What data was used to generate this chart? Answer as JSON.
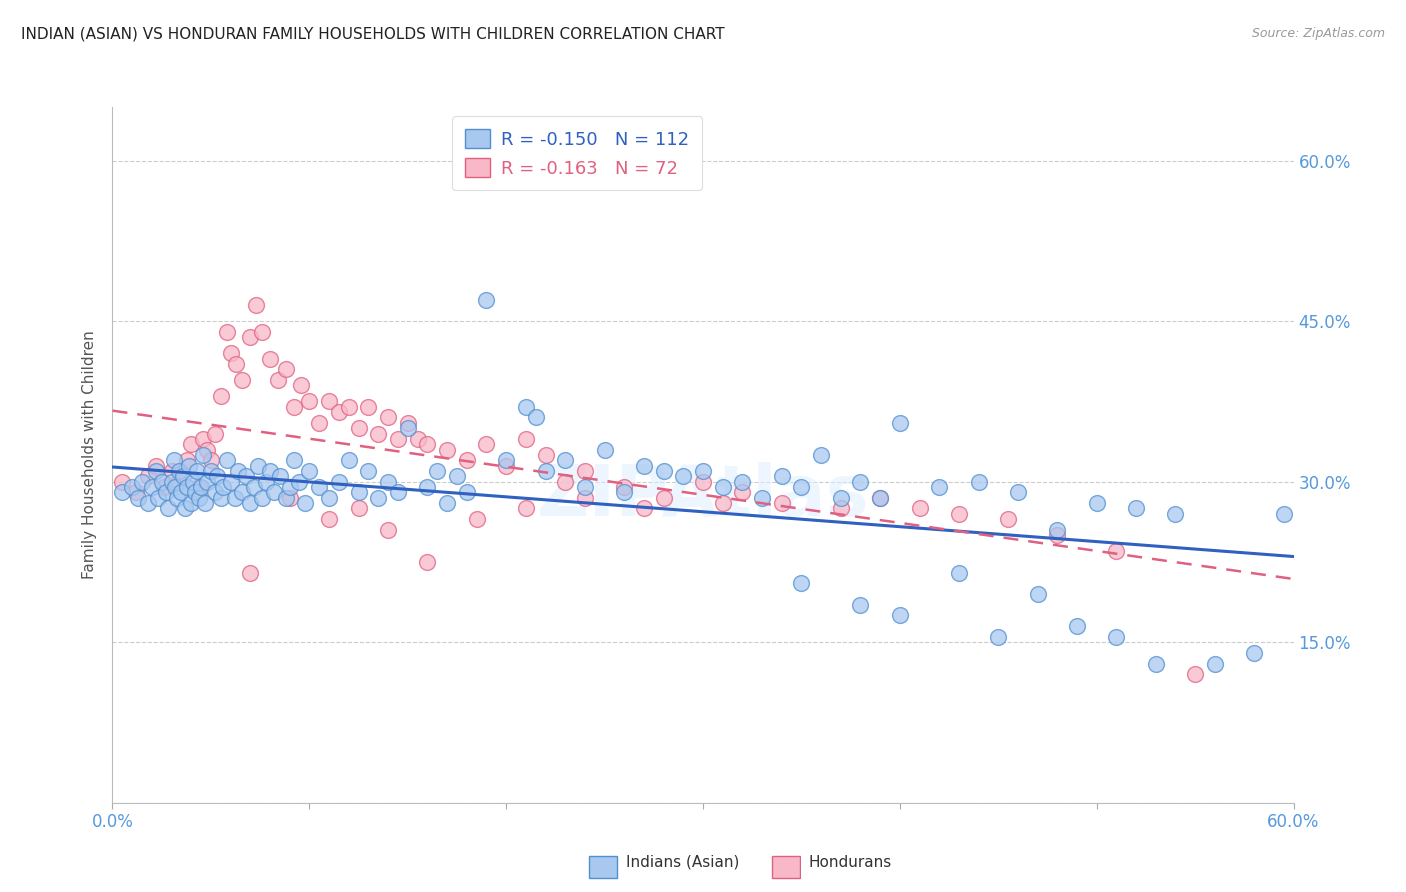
{
  "title": "INDIAN (ASIAN) VS HONDURAN FAMILY HOUSEHOLDS WITH CHILDREN CORRELATION CHART",
  "source": "Source: ZipAtlas.com",
  "ylabel": "Family Households with Children",
  "xlim": [
    0.0,
    0.6
  ],
  "ylim": [
    0.0,
    0.65
  ],
  "legend_r1": "-0.150",
  "legend_n1": "112",
  "legend_r2": "-0.163",
  "legend_n2": "72",
  "color_indian_fill": "#A8C8F0",
  "color_indian_edge": "#5090D0",
  "color_honduran_fill": "#F8B8C8",
  "color_honduran_edge": "#E06080",
  "color_line_indian": "#3060C0",
  "color_line_honduran": "#E06080",
  "color_title": "#222222",
  "color_source": "#999999",
  "color_tick_labels": "#5599DD",
  "color_ylabel": "#555555",
  "watermark": "ZIPAtlas",
  "indian_x": [
    0.005,
    0.01,
    0.013,
    0.015,
    0.018,
    0.02,
    0.022,
    0.023,
    0.025,
    0.027,
    0.028,
    0.03,
    0.031,
    0.032,
    0.033,
    0.034,
    0.035,
    0.036,
    0.037,
    0.038,
    0.039,
    0.04,
    0.041,
    0.042,
    0.043,
    0.044,
    0.045,
    0.046,
    0.047,
    0.048,
    0.05,
    0.052,
    0.053,
    0.055,
    0.056,
    0.058,
    0.06,
    0.062,
    0.064,
    0.066,
    0.068,
    0.07,
    0.072,
    0.074,
    0.076,
    0.078,
    0.08,
    0.082,
    0.085,
    0.088,
    0.09,
    0.092,
    0.095,
    0.098,
    0.1,
    0.105,
    0.11,
    0.115,
    0.12,
    0.125,
    0.13,
    0.135,
    0.14,
    0.145,
    0.15,
    0.16,
    0.165,
    0.17,
    0.175,
    0.18,
    0.19,
    0.2,
    0.21,
    0.215,
    0.22,
    0.23,
    0.24,
    0.25,
    0.26,
    0.27,
    0.28,
    0.29,
    0.3,
    0.31,
    0.32,
    0.33,
    0.34,
    0.35,
    0.36,
    0.37,
    0.38,
    0.39,
    0.4,
    0.42,
    0.44,
    0.46,
    0.48,
    0.5,
    0.52,
    0.54,
    0.35,
    0.38,
    0.4,
    0.43,
    0.45,
    0.47,
    0.49,
    0.51,
    0.53,
    0.56,
    0.58,
    0.595
  ],
  "indian_y": [
    0.29,
    0.295,
    0.285,
    0.3,
    0.28,
    0.295,
    0.31,
    0.285,
    0.3,
    0.29,
    0.275,
    0.3,
    0.32,
    0.295,
    0.285,
    0.31,
    0.29,
    0.305,
    0.275,
    0.295,
    0.315,
    0.28,
    0.3,
    0.29,
    0.31,
    0.285,
    0.295,
    0.325,
    0.28,
    0.3,
    0.31,
    0.29,
    0.305,
    0.285,
    0.295,
    0.32,
    0.3,
    0.285,
    0.31,
    0.29,
    0.305,
    0.28,
    0.295,
    0.315,
    0.285,
    0.3,
    0.31,
    0.29,
    0.305,
    0.285,
    0.295,
    0.32,
    0.3,
    0.28,
    0.31,
    0.295,
    0.285,
    0.3,
    0.32,
    0.29,
    0.31,
    0.285,
    0.3,
    0.29,
    0.35,
    0.295,
    0.31,
    0.28,
    0.305,
    0.29,
    0.47,
    0.32,
    0.37,
    0.36,
    0.31,
    0.32,
    0.295,
    0.33,
    0.29,
    0.315,
    0.31,
    0.305,
    0.31,
    0.295,
    0.3,
    0.285,
    0.305,
    0.295,
    0.325,
    0.285,
    0.3,
    0.285,
    0.355,
    0.295,
    0.3,
    0.29,
    0.255,
    0.28,
    0.275,
    0.27,
    0.205,
    0.185,
    0.175,
    0.215,
    0.155,
    0.195,
    0.165,
    0.155,
    0.13,
    0.13,
    0.14,
    0.27
  ],
  "honduran_x": [
    0.005,
    0.012,
    0.018,
    0.022,
    0.026,
    0.03,
    0.034,
    0.038,
    0.04,
    0.044,
    0.046,
    0.048,
    0.05,
    0.052,
    0.055,
    0.058,
    0.06,
    0.063,
    0.066,
    0.07,
    0.073,
    0.076,
    0.08,
    0.084,
    0.088,
    0.092,
    0.096,
    0.1,
    0.105,
    0.11,
    0.115,
    0.12,
    0.125,
    0.13,
    0.135,
    0.14,
    0.145,
    0.15,
    0.155,
    0.16,
    0.17,
    0.18,
    0.19,
    0.2,
    0.21,
    0.22,
    0.23,
    0.24,
    0.26,
    0.28,
    0.3,
    0.32,
    0.34,
    0.37,
    0.39,
    0.41,
    0.43,
    0.455,
    0.48,
    0.51,
    0.07,
    0.09,
    0.11,
    0.125,
    0.14,
    0.16,
    0.185,
    0.21,
    0.24,
    0.27,
    0.31,
    0.55
  ],
  "honduran_y": [
    0.3,
    0.29,
    0.305,
    0.315,
    0.295,
    0.31,
    0.3,
    0.32,
    0.335,
    0.295,
    0.34,
    0.33,
    0.32,
    0.345,
    0.38,
    0.44,
    0.42,
    0.41,
    0.395,
    0.435,
    0.465,
    0.44,
    0.415,
    0.395,
    0.405,
    0.37,
    0.39,
    0.375,
    0.355,
    0.375,
    0.365,
    0.37,
    0.35,
    0.37,
    0.345,
    0.36,
    0.34,
    0.355,
    0.34,
    0.335,
    0.33,
    0.32,
    0.335,
    0.315,
    0.34,
    0.325,
    0.3,
    0.31,
    0.295,
    0.285,
    0.3,
    0.29,
    0.28,
    0.275,
    0.285,
    0.275,
    0.27,
    0.265,
    0.25,
    0.235,
    0.215,
    0.285,
    0.265,
    0.275,
    0.255,
    0.225,
    0.265,
    0.275,
    0.285,
    0.275,
    0.28,
    0.12
  ]
}
